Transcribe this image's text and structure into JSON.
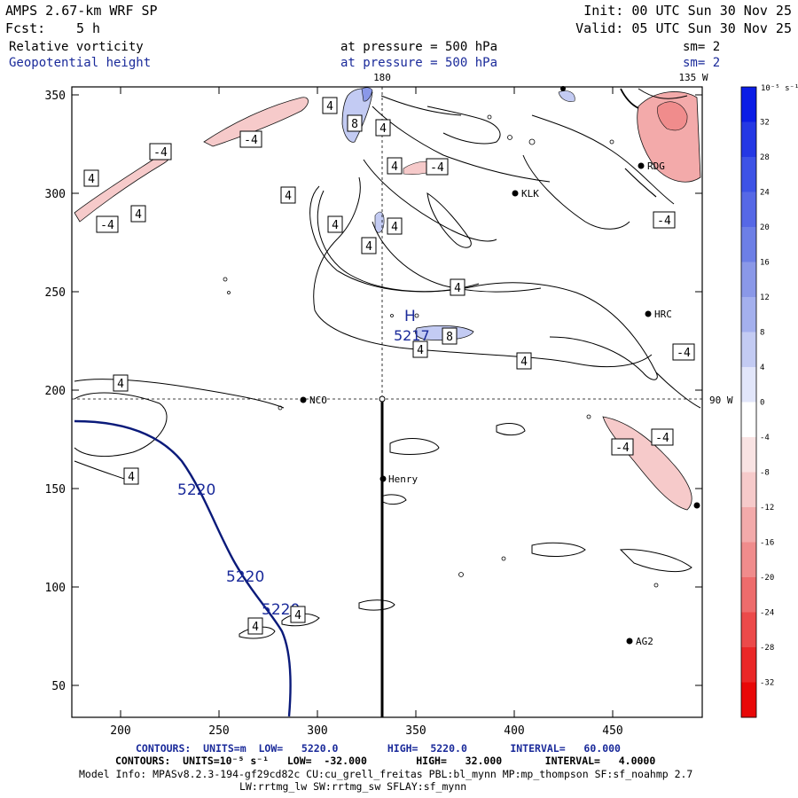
{
  "header": {
    "title": "AMPS 2.67-km WRF SP",
    "fcst_label": "Fcst:",
    "fcst_value": "5 h",
    "init": "Init: 00 UTC Sun 30 Nov 25",
    "valid": "Valid: 05 UTC Sun 30 Nov 25",
    "field1_name": "Relative vorticity",
    "field1_level": "at pressure =  500 hPa",
    "field1_sm": "sm= 2",
    "field2_name": "Geopotential height",
    "field2_level": "at pressure =  500 hPa",
    "field2_sm": "sm= 2"
  },
  "map": {
    "top_meridian_label": "180",
    "top_right_label": "135 W",
    "right_lat_label": "90 W",
    "x_ticks": [
      "200",
      "250",
      "300",
      "350",
      "400",
      "450"
    ],
    "y_ticks": [
      "350",
      "300",
      "250",
      "200",
      "150",
      "100",
      "50"
    ],
    "stations": [
      "RDG",
      "KLK",
      "HRC",
      "NCO",
      "Henry",
      "AG2"
    ],
    "high_label": "H",
    "high_value": "5217",
    "height_contour_labels": [
      "5220",
      "5220",
      "5220"
    ],
    "vorticity_labels": [
      "4",
      "-4",
      "8"
    ]
  },
  "colorbar": {
    "unit_label": "10⁻⁵ s⁻¹",
    "ticks": [
      "32",
      "28",
      "24",
      "20",
      "16",
      "12",
      "8",
      "4",
      "0",
      "-4",
      "-8",
      "-12",
      "-16",
      "-20",
      "-24",
      "-28",
      "-32"
    ],
    "colors": [
      "#0b1de6",
      "#2438e4",
      "#3d53e6",
      "#5668e6",
      "#6d7fe6",
      "#8a98e8",
      "#a4b0ee",
      "#c3cbf3",
      "#e2e6fa",
      "#ffffff",
      "#f9e3e3",
      "#f6caca",
      "#f3aaaa",
      "#f08c8c",
      "#ee6c6c",
      "#ec4a4a",
      "#ea2727",
      "#e80808"
    ]
  },
  "footer": {
    "line1": "CONTOURS:  UNITS=m  LOW=   5220.0        HIGH=  5220.0       INTERVAL=   60.000",
    "line2": "CONTOURS:  UNITS=10⁻⁵ s⁻¹   LOW=  -32.000        HIGH=   32.000       INTERVAL=   4.0000",
    "line3": "Model Info: MPASv8.2.3-194-gf29cd82c CU:cu_grell_freitas PBL:bl_mynn MP:mp_thompson SF:sf_noahmp 2.7",
    "line4": "LW:rrtmg_lw SW:rrtmg_sw SFLAY:sf_mynn"
  }
}
